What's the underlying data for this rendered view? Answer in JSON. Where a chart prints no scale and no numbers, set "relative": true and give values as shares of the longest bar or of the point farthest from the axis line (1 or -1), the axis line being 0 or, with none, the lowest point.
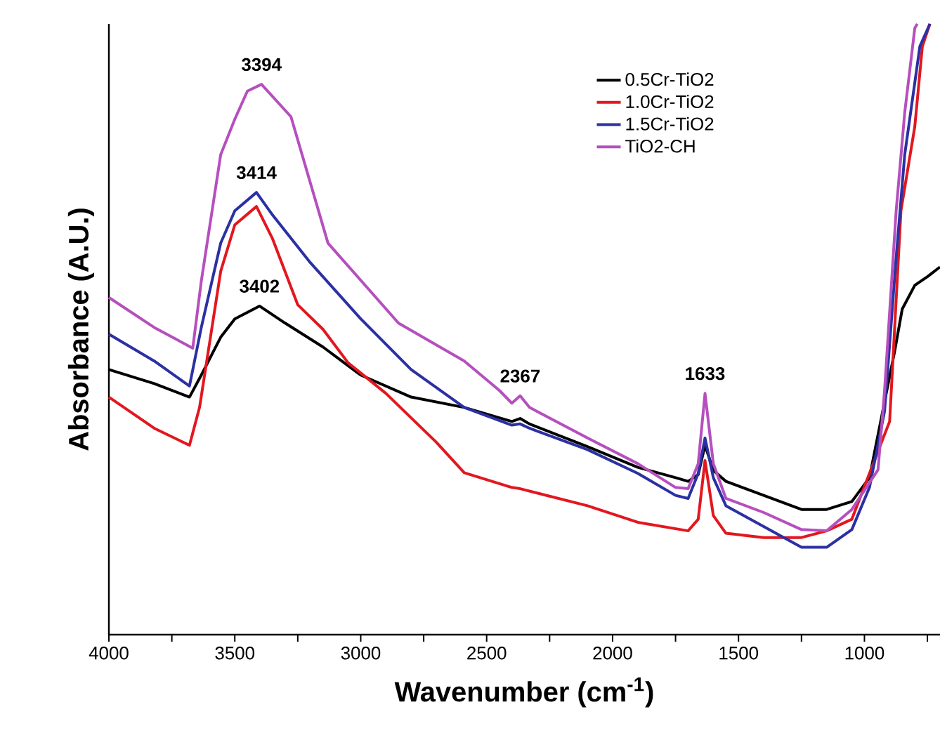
{
  "chart_data": {
    "type": "line",
    "relative": true,
    "xlabel": "Wavenumber (cm$^{-1}$)",
    "ylabel": "Absorbance (A.U.)",
    "xlim": [
      4000,
      700
    ],
    "xticks": [
      4000,
      {
        "value": 3750,
        "label": null
      },
      3500,
      {
        "value": 3250,
        "label": null
      },
      3000,
      {
        "value": 2750,
        "label": null
      },
      2500,
      {
        "value": 2250,
        "label": null
      },
      2000,
      {
        "value": 1750,
        "label": null
      },
      1500,
      {
        "value": 1250,
        "label": null
      },
      1000,
      {
        "value": 750,
        "label": null
      }
    ],
    "legend": "top right",
    "grid": false,
    "line_style": "solid",
    "series": [
      {
        "name": "0.5Cr-TiO2",
        "color": "#000000",
        "x": [
          4000,
          3820,
          3680,
          3633,
          3556,
          3500,
          3402,
          3300,
          3150,
          3000,
          2800,
          2589,
          2400,
          2367,
          2330,
          2100,
          1900,
          1750,
          1700,
          1660,
          1633,
          1600,
          1550,
          1400,
          1250,
          1150,
          1050,
          980,
          920,
          880,
          850,
          800,
          750,
          700
        ],
        "values": [
          0.434,
          0.411,
          0.389,
          0.425,
          0.487,
          0.517,
          0.538,
          0.51,
          0.471,
          0.425,
          0.389,
          0.372,
          0.349,
          0.354,
          0.345,
          0.308,
          0.274,
          0.257,
          0.251,
          0.262,
          0.31,
          0.269,
          0.251,
          0.228,
          0.205,
          0.205,
          0.218,
          0.257,
          null,
          0.464,
          0.533,
          0.572,
          0.586,
          0.602
        ]
      },
      {
        "name": "1.0Cr-TiO2",
        "color": "#e2171f",
        "x": [
          4000,
          3820,
          3680,
          3640,
          3556,
          3500,
          3414,
          3350,
          3250,
          3150,
          3050,
          2900,
          2700,
          2589,
          2400,
          2367,
          2100,
          1900,
          1700,
          1660,
          1633,
          1600,
          1550,
          1400,
          1250,
          1150,
          1050,
          980,
          900,
          855,
          800,
          770,
          740
        ],
        "values": [
          0.389,
          0.338,
          0.31,
          0.372,
          0.595,
          0.671,
          0.701,
          0.648,
          0.54,
          0.5,
          0.445,
          0.395,
          0.315,
          0.265,
          0.241,
          0.239,
          0.211,
          0.184,
          0.17,
          0.189,
          0.285,
          0.195,
          0.166,
          0.159,
          0.159,
          0.17,
          0.189,
          0.264,
          0.349,
          0.694,
          0.832,
          0.963,
          1.0
        ]
      },
      {
        "name": "1.5Cr-TiO2",
        "color": "#2b30a3",
        "x": [
          4000,
          3820,
          3680,
          3633,
          3556,
          3500,
          3414,
          3350,
          3200,
          3000,
          2800,
          2589,
          2400,
          2367,
          2330,
          2100,
          1900,
          1750,
          1700,
          1660,
          1633,
          1600,
          1550,
          1400,
          1250,
          1150,
          1050,
          980,
          920,
          874,
          840,
          780,
          740
        ],
        "values": [
          0.492,
          0.448,
          0.407,
          0.503,
          0.641,
          0.694,
          0.724,
          0.687,
          0.609,
          0.517,
          0.434,
          0.372,
          0.343,
          0.345,
          0.338,
          0.303,
          0.264,
          0.228,
          0.223,
          0.264,
          0.322,
          0.257,
          0.211,
          0.177,
          0.143,
          0.143,
          0.172,
          0.241,
          0.366,
          0.618,
          0.786,
          0.963,
          1.0
        ]
      },
      {
        "name": "TiO2-CH",
        "color": "#b64fbe",
        "x": [
          4000,
          3820,
          3667,
          3633,
          3556,
          3500,
          3450,
          3394,
          3277,
          3130,
          2850,
          2589,
          2450,
          2400,
          2367,
          2330,
          2100,
          1900,
          1750,
          1700,
          1660,
          1633,
          1600,
          1550,
          1400,
          1250,
          1150,
          1050,
          946,
          920,
          874,
          840,
          800,
          790
        ],
        "values": [
          0.552,
          0.503,
          0.469,
          0.579,
          0.786,
          0.844,
          0.89,
          0.901,
          0.848,
          0.641,
          0.51,
          0.448,
          0.4,
          0.379,
          0.391,
          0.372,
          0.322,
          0.28,
          0.241,
          0.239,
          0.28,
          0.395,
          0.28,
          0.223,
          0.2,
          0.172,
          0.17,
          0.205,
          0.27,
          0.4,
          0.694,
          0.855,
          0.993,
          1.0
        ]
      }
    ],
    "annotations": [
      {
        "text": "3394",
        "x": 3394,
        "y": 0.901
      },
      {
        "text": "3414",
        "x": 3414,
        "y": 0.724
      },
      {
        "text": "3402",
        "x": 3402,
        "y": 0.538
      },
      {
        "text": "2367",
        "x": 2367,
        "y": 0.391
      },
      {
        "text": "1633",
        "x": 1633,
        "y": 0.395
      }
    ]
  }
}
